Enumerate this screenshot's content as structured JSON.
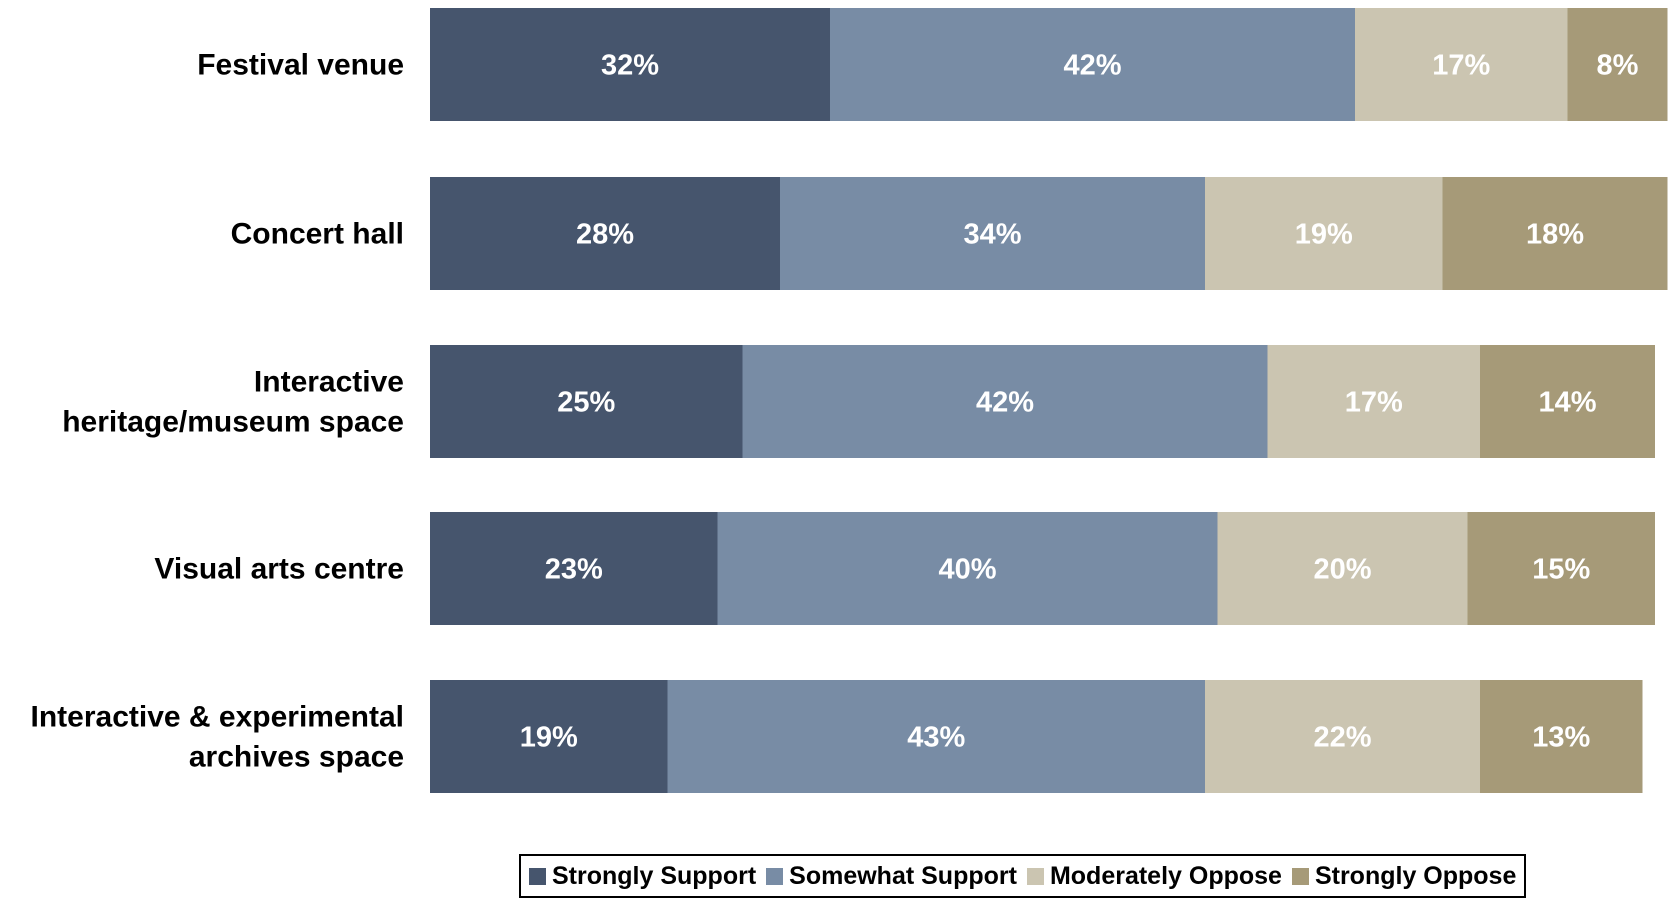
{
  "chart_data": {
    "type": "bar",
    "orientation": "horizontal",
    "stacked": true,
    "categories": [
      "Festival venue",
      "Concert hall",
      "Interactive heritage/museum space",
      "Visual arts centre",
      "Interactive & experimental archives space"
    ],
    "category_lines": [
      [
        "Festival venue"
      ],
      [
        "Concert hall"
      ],
      [
        "Interactive",
        "heritage/museum space"
      ],
      [
        "Visual arts centre"
      ],
      [
        "Interactive & experimental",
        "archives space"
      ]
    ],
    "series": [
      {
        "name": "Strongly Support",
        "color": "#46556d",
        "values": [
          32,
          28,
          25,
          23,
          19
        ]
      },
      {
        "name": "Somewhat Support",
        "color": "#788ca5",
        "values": [
          42,
          34,
          42,
          40,
          43
        ]
      },
      {
        "name": "Moderately Oppose",
        "color": "#cbc5b1",
        "values": [
          17,
          19,
          17,
          20,
          22
        ]
      },
      {
        "name": "Strongly Oppose",
        "color": "#a69a78",
        "values": [
          8,
          18,
          14,
          15,
          13
        ]
      }
    ],
    "value_suffix": "%",
    "xlim": [
      0,
      100
    ],
    "grid": false,
    "legend_position": "bottom"
  }
}
